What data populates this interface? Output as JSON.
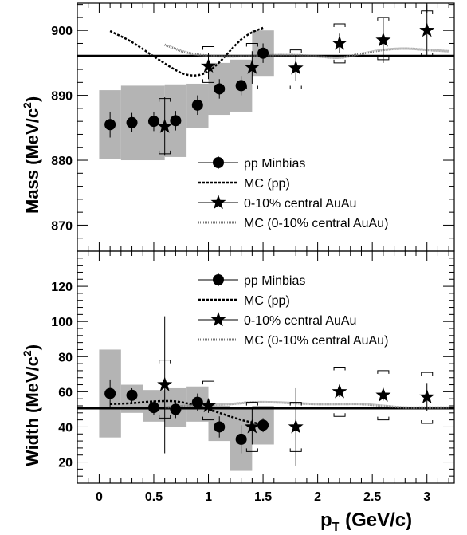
{
  "chart_data": {
    "type": "scatter",
    "x_ticks": [
      "0",
      "0.5",
      "1",
      "1.5",
      "2",
      "2.5",
      "3"
    ],
    "xlabel": "p",
    "xlabel_sub": "T",
    "xlabel_unit": " (GeV/c)",
    "xlim": [
      -0.2,
      3.25
    ],
    "panels": [
      {
        "name": "mass",
        "ylabel": "Mass (MeV/c",
        "ylabel_sup": "2",
        "ylabel_end": ")",
        "ylim": [
          866,
          904.2
        ],
        "y_ticks": [
          870,
          880,
          890,
          900
        ],
        "reference_line": 896.1,
        "legend": [
          "pp Minbias",
          "MC (pp)",
          "0-10% central AuAu",
          "MC (0-10% central AuAu)"
        ],
        "pp_minbias": {
          "x": [
            0.1,
            0.3,
            0.5,
            0.7,
            0.9,
            1.1,
            1.3,
            1.5
          ],
          "y": [
            885.5,
            885.8,
            886.0,
            886.1,
            888.5,
            891.0,
            891.5,
            896.5
          ],
          "err": [
            2.0,
            1.5,
            1.5,
            1.5,
            1.5,
            1.5,
            1.5,
            1.5
          ],
          "sys_low": [
            880.2,
            880.0,
            880.0,
            880.5,
            885.0,
            887.0,
            887.5,
            893.0
          ],
          "sys_high": [
            890.8,
            891.5,
            891.5,
            891.7,
            891.8,
            895.0,
            895.5,
            900.0
          ]
        },
        "mc_pp": {
          "x": [
            0.1,
            0.3,
            0.5,
            0.7,
            0.8,
            0.9,
            1.0,
            1.1,
            1.2,
            1.3,
            1.4,
            1.5
          ],
          "y": [
            899.9,
            898.2,
            896.0,
            893.9,
            893.2,
            893.1,
            893.7,
            895.1,
            896.9,
            898.6,
            899.7,
            900.4
          ]
        },
        "auau": {
          "x": [
            0.6,
            1.0,
            1.4,
            1.8,
            2.2,
            2.6,
            3.0
          ],
          "y": [
            885.2,
            894.5,
            894.3,
            894.2,
            898.0,
            898.5,
            900.0
          ],
          "err": [
            4.5,
            2.0,
            2.5,
            2.0,
            1.5,
            3.5,
            4.0
          ],
          "sys_low": [
            881.0,
            892.0,
            891.0,
            891.0,
            895.0,
            895.5,
            896.0
          ],
          "sys_high": [
            889.5,
            897.5,
            898.0,
            897.0,
            901.0,
            902.0,
            903.0
          ]
        },
        "mc_auau": {
          "x": [
            0.6,
            0.8,
            1.0,
            1.2,
            1.4,
            1.6,
            1.8,
            2.0,
            2.2,
            2.4,
            2.6,
            2.8,
            3.0,
            3.2
          ],
          "y": [
            897.8,
            896.6,
            896.1,
            896.0,
            896.1,
            896.2,
            896.2,
            896.0,
            895.8,
            896.4,
            897.0,
            897.2,
            897.0,
            896.8
          ]
        }
      },
      {
        "name": "width",
        "ylabel": "Width (MeV/c",
        "ylabel_sup": "2",
        "ylabel_end": ")",
        "ylim": [
          8,
          140
        ],
        "y_ticks": [
          20,
          40,
          60,
          80,
          100,
          120
        ],
        "reference_line": 50.5,
        "legend": [
          "pp Minbias",
          "MC (pp)",
          "0-10% central AuAu",
          "MC (0-10% central AuAu)"
        ],
        "pp_minbias": {
          "x": [
            0.1,
            0.3,
            0.5,
            0.7,
            0.9,
            1.1,
            1.3,
            1.5
          ],
          "y": [
            59,
            58,
            51,
            50,
            54,
            40,
            33,
            41
          ],
          "err": [
            8,
            4,
            4,
            5,
            5,
            6,
            8,
            4
          ],
          "sys_low": [
            34,
            48,
            43,
            40,
            43,
            32,
            15,
            30
          ],
          "sys_high": [
            84,
            64,
            61,
            62,
            63,
            52,
            51,
            52
          ]
        },
        "mc_pp": {
          "x": [
            0.1,
            0.3,
            0.5,
            0.7,
            0.9,
            1.1,
            1.3,
            1.45
          ],
          "y": [
            53,
            53.5,
            54.5,
            54.5,
            52,
            48,
            44,
            42
          ]
        },
        "auau": {
          "x": [
            0.6,
            1.0,
            1.4,
            1.8,
            2.2,
            2.6,
            3.0
          ],
          "y": [
            64,
            52,
            40,
            40,
            60,
            58,
            57
          ],
          "err": [
            39,
            4,
            10,
            22,
            3,
            3,
            8
          ],
          "sys_low": [
            45,
            44,
            26,
            26,
            46,
            44,
            42
          ],
          "sys_high": [
            78,
            66,
            54,
            54,
            74,
            72,
            71
          ]
        },
        "mc_auau": {
          "x": [
            0.6,
            0.8,
            1.0,
            1.2,
            1.4,
            1.6,
            1.8,
            2.0,
            2.2,
            2.4,
            2.6,
            2.8,
            3.0,
            3.2
          ],
          "y": [
            51,
            52,
            52.5,
            53,
            54,
            54,
            53.5,
            53,
            53,
            53,
            52,
            51,
            51,
            51
          ]
        }
      }
    ]
  },
  "colors": {
    "band": "#b4b4b4",
    "ink": "#000000"
  }
}
